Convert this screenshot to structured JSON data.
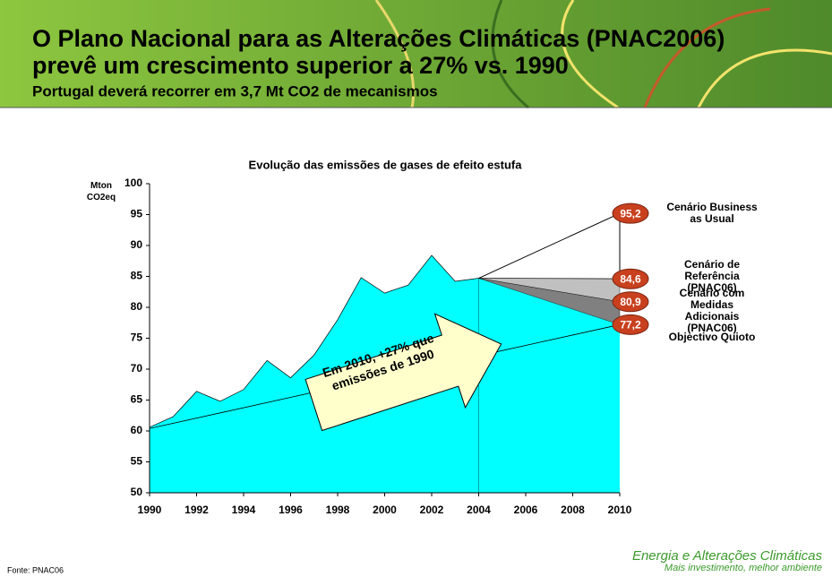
{
  "header": {
    "title": "O Plano Nacional para as Alterações Climáticas (PNAC2006) prevê um crescimento superior a 27% vs. 1990",
    "subtitle": "Portugal deverá recorrer em 3,7 Mt CO2 de mecanismos"
  },
  "chart_data": {
    "type": "area",
    "title": "Evolução das emissões de gases de efeito estufa",
    "y_label": "Mton CO2eq",
    "xlim": [
      1990,
      2010
    ],
    "xticks": [
      1990,
      1992,
      1994,
      1996,
      1998,
      2000,
      2002,
      2004,
      2006,
      2008,
      2010
    ],
    "ylim": [
      50,
      100
    ],
    "yticks": [
      50,
      55,
      60,
      65,
      70,
      75,
      80,
      85,
      90,
      95,
      100
    ],
    "series": [
      {
        "color": "#00ffff",
        "x": [
          1990,
          1991,
          1992,
          1993,
          1994,
          1995,
          1996,
          1997,
          1998,
          1999,
          2000,
          2001,
          2002,
          2003,
          2004
        ],
        "values": [
          60.6,
          62.3,
          66.4,
          64.8,
          66.7,
          71.4,
          68.6,
          72.3,
          78.0,
          84.8,
          82.3,
          83.6,
          88.4,
          84.2,
          84.7
        ]
      },
      {
        "name": "Cenário Business as Usual",
        "color": "#ffffff",
        "x": [
          2004,
          2010
        ],
        "values": [
          84.7,
          95.2
        ],
        "value_labels": [
          null,
          "95,2"
        ]
      },
      {
        "name": "Cenário de Referência (PNAC06)",
        "color": "#c0c0c0",
        "x": [
          2004,
          2010
        ],
        "values": [
          84.7,
          84.6
        ],
        "value_labels": [
          null,
          "84,6"
        ]
      },
      {
        "name": "Cenário com Medidas Adicionais (PNAC06)",
        "color": "#808080",
        "x": [
          2004,
          2010
        ],
        "values": [
          84.7,
          80.9
        ],
        "value_labels": [
          null,
          "80,9"
        ]
      },
      {
        "name": "Objectivo Quioto",
        "color": "#000000",
        "x": [
          1990,
          2010
        ],
        "values": [
          60.4,
          77.2
        ],
        "value_labels": [
          null,
          "77,2"
        ]
      }
    ],
    "annotation": "Em 2010, +27% que emissões de 1990"
  },
  "footer": {
    "brand": "Energia e Alterações Climáticas",
    "slogan": "Mais investimento, melhor ambiente",
    "source": "Fonte: PNAC06"
  }
}
